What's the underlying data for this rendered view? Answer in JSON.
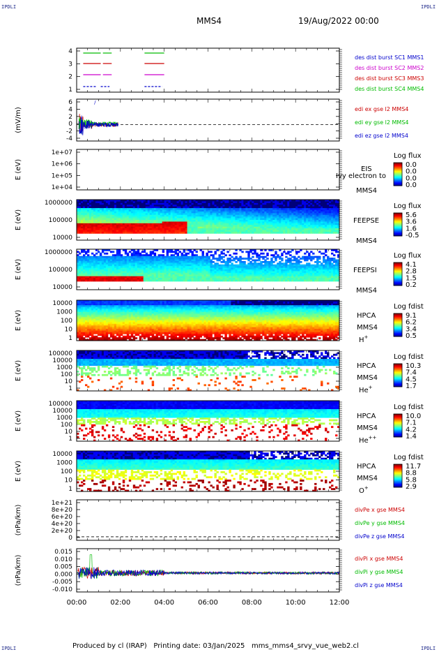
{
  "header": {
    "corner_label": "IPDLI",
    "title": "MMS4",
    "date": "19/Aug/2022 00:00"
  },
  "footer": {
    "produced_by": "Produced by cl (IRAP)",
    "printing_date": "Printing date: 03/Jan/2025",
    "filename": "mms_mms4_srvy_vue_web2.cl"
  },
  "chart_data": {
    "type": "stacked-panels",
    "time_axis": {
      "ticks": [
        "00:00",
        "02:00",
        "04:00",
        "06:00",
        "08:00",
        "10:00",
        "12:00"
      ],
      "range_hours": [
        0,
        12
      ]
    },
    "panels": [
      {
        "id": "burst",
        "type": "timeline",
        "yticks": [
          "4",
          "3",
          "2",
          "1"
        ],
        "ylim": [
          0.5,
          4.5
        ],
        "series": [
          {
            "name": "des dist burst SC1 MMS1",
            "color": "#0000cc",
            "y": 1,
            "dashed": true,
            "segments": [
              [
                0.3,
                0.9
              ],
              [
                1.1,
                1.5
              ],
              [
                3.1,
                3.9
              ]
            ]
          },
          {
            "name": "des dist burst SC2 MMS2",
            "color": "#cc00cc",
            "y": 2,
            "dashed": false,
            "segments": [
              [
                0.3,
                1.1
              ],
              [
                1.2,
                1.6
              ],
              [
                3.1,
                4.0
              ]
            ]
          },
          {
            "name": "des dist burst SC3 MMS3",
            "color": "#cc0000",
            "y": 3,
            "dashed": false,
            "segments": [
              [
                0.3,
                1.1
              ],
              [
                1.2,
                1.6
              ],
              [
                3.1,
                4.0
              ]
            ]
          },
          {
            "name": "des dist burst SC4 MMS4",
            "color": "#00bb00",
            "y": 4,
            "dashed": false,
            "segments": [
              [
                0.3,
                1.1
              ],
              [
                1.2,
                1.6
              ],
              [
                3.1,
                4.0
              ]
            ]
          }
        ]
      },
      {
        "id": "edi",
        "type": "line",
        "ylabel": "(mV/m)",
        "yticks": [
          "6",
          "4",
          "2",
          "0",
          "-2",
          "-4"
        ],
        "ylim": [
          -4.5,
          7
        ],
        "zero_line": true,
        "legend": [
          {
            "name": "edi ex gse l2 MMS4",
            "color": "#cc0000"
          },
          {
            "name": "edi ey gse l2 MMS4",
            "color": "#00bb00"
          },
          {
            "name": "edi ez gse l2 MMS4",
            "color": "#0000cc"
          }
        ],
        "data_span_hours": [
          0.1,
          1.9
        ]
      },
      {
        "id": "eis",
        "type": "spectrogram",
        "ylabel": "E (eV)",
        "yticks": [
          "1e+07",
          "1e+06",
          "1e+05",
          "1e+04"
        ],
        "instrument": "EIS",
        "overlay_label": "Ivy electron to",
        "spacecraft": "MMS4",
        "colorbar": {
          "title": "Log flux",
          "ticks": [
            "0.0",
            "0.0",
            "0.0",
            "0.0"
          ]
        },
        "empty": true
      },
      {
        "id": "feepse",
        "type": "spectrogram",
        "ylabel": "E (eV)",
        "yticks": [
          "1000000",
          "100000",
          "10000"
        ],
        "instrument": "FEEPSE",
        "spacecraft": "MMS4",
        "colorbar": {
          "title": "Log flux",
          "ticks": [
            "5.6",
            "3.6",
            "1.6",
            "-0.5"
          ]
        }
      },
      {
        "id": "feepsi",
        "type": "spectrogram",
        "ylabel": "E (eV)",
        "yticks": [
          "1000000",
          "100000",
          "10000"
        ],
        "instrument": "FEEPSI",
        "spacecraft": "MMS4",
        "colorbar": {
          "title": "Log flux",
          "ticks": [
            "4.1",
            "2.8",
            "1.5",
            "0.2"
          ]
        }
      },
      {
        "id": "hpca_h",
        "type": "spectrogram",
        "ylabel": "E (eV)",
        "yticks": [
          "10000",
          "1000",
          "100",
          "10",
          "1"
        ],
        "instrument": "HPCA",
        "spacecraft": "MMS4",
        "species": "H",
        "charge": "+",
        "colorbar": {
          "title": "Log fdist",
          "ticks": [
            "9.1",
            "6.2",
            "3.4",
            "0.5"
          ]
        }
      },
      {
        "id": "hpca_he",
        "type": "spectrogram",
        "ylabel": "E (eV)",
        "yticks": [
          "100000",
          "10000",
          "1000",
          "100",
          "10",
          "1"
        ],
        "instrument": "HPCA",
        "spacecraft": "MMS4",
        "species": "He",
        "charge": "+",
        "colorbar": {
          "title": "Log fdist",
          "ticks": [
            "10.3",
            "7.4",
            "4.5",
            "1.7"
          ]
        }
      },
      {
        "id": "hpca_hepp",
        "type": "spectrogram",
        "ylabel": "E (eV)",
        "yticks": [
          "100000",
          "10000",
          "1000",
          "100",
          "10",
          "1"
        ],
        "instrument": "HPCA",
        "spacecraft": "MMS4",
        "species": "He",
        "charge": "++",
        "colorbar": {
          "title": "Log fdist",
          "ticks": [
            "10.0",
            "7.1",
            "4.2",
            "1.4"
          ]
        }
      },
      {
        "id": "hpca_o",
        "type": "spectrogram",
        "ylabel": "E (eV)",
        "yticks": [
          "10000",
          "1000",
          "100",
          "10",
          "1"
        ],
        "instrument": "HPCA",
        "spacecraft": "MMS4",
        "species": "O",
        "charge": "+",
        "colorbar": {
          "title": "Log fdist",
          "ticks": [
            "11.7",
            "8.8",
            "5.8",
            "2.9"
          ]
        }
      },
      {
        "id": "divpe",
        "type": "line",
        "ylabel": "(nPa/km)",
        "yticks": [
          "1e+21",
          "8e+20",
          "6e+20",
          "4e+20",
          "2e+20",
          "0"
        ],
        "ylim": [
          -1e+20,
          1.05e+21
        ],
        "zero_line": true,
        "legend": [
          {
            "name": "divPe x gse MMS4",
            "color": "#cc0000"
          },
          {
            "name": "divPe y gse MMS4",
            "color": "#00bb00"
          },
          {
            "name": "divPe z gse MMS4",
            "color": "#0000cc"
          }
        ]
      },
      {
        "id": "divpi",
        "type": "line",
        "ylabel": "(nPa/km)",
        "yticks": [
          "0.015",
          "0.010",
          "0.005",
          "0.000",
          "-0.005",
          "-0.010"
        ],
        "ylim": [
          -0.0125,
          0.016
        ],
        "zero_line": true,
        "legend": [
          {
            "name": "divPi x gse MMS4",
            "color": "#cc0000"
          },
          {
            "name": "divPi y gse MMS4",
            "color": "#00bb00"
          },
          {
            "name": "divPi z gse MMS4",
            "color": "#0000cc"
          }
        ]
      }
    ]
  }
}
